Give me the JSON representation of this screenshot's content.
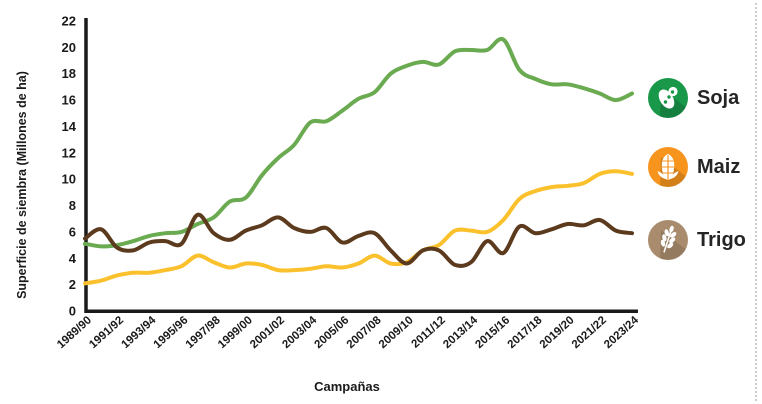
{
  "chart_data": {
    "type": "line",
    "title": "",
    "xlabel": "Campañas",
    "ylabel": "Superficie de siembra (Millones de ha)",
    "ylim": [
      0,
      22
    ],
    "y_tick_step": 2,
    "grid": false,
    "legend_position": "right",
    "x_tick_every": 2,
    "x_tick_labels": [
      "1989/90",
      "1991/92",
      "1993/94",
      "1995/96",
      "1997/98",
      "1999/00",
      "2001/02",
      "2003/04",
      "2005/06",
      "2007/08",
      "2009/10",
      "2011/12",
      "2013/14",
      "2015/16",
      "2017/18",
      "2019/20",
      "2021/22",
      "2023/24"
    ],
    "x": [
      "1989/90",
      "1990/91",
      "1991/92",
      "1992/93",
      "1993/94",
      "1994/95",
      "1995/96",
      "1996/97",
      "1997/98",
      "1998/99",
      "1999/00",
      "2000/01",
      "2001/02",
      "2002/03",
      "2003/04",
      "2004/05",
      "2005/06",
      "2006/07",
      "2007/08",
      "2008/09",
      "2009/10",
      "2010/11",
      "2011/12",
      "2012/13",
      "2013/14",
      "2014/15",
      "2015/16",
      "2016/17",
      "2017/18",
      "2018/19",
      "2019/20",
      "2020/21",
      "2021/22",
      "2022/23",
      "2023/24"
    ],
    "series": [
      {
        "name": "Soja",
        "color": "#6aaa50",
        "values": [
          5.1,
          4.9,
          5.0,
          5.3,
          5.7,
          5.9,
          6.0,
          6.6,
          7.1,
          8.3,
          8.6,
          10.3,
          11.6,
          12.6,
          14.3,
          14.4,
          15.2,
          16.1,
          16.6,
          18.0,
          18.6,
          18.9,
          18.7,
          19.7,
          19.8,
          19.8,
          20.6,
          18.3,
          17.6,
          17.2,
          17.2,
          16.9,
          16.5,
          16.0,
          16.5
        ]
      },
      {
        "name": "Maiz",
        "color": "#fbc12d",
        "values": [
          2.1,
          2.3,
          2.7,
          2.9,
          2.9,
          3.1,
          3.4,
          4.2,
          3.7,
          3.3,
          3.6,
          3.5,
          3.1,
          3.1,
          3.2,
          3.4,
          3.3,
          3.6,
          4.2,
          3.6,
          3.7,
          4.6,
          5.0,
          6.1,
          6.1,
          6.0,
          6.9,
          8.5,
          9.1,
          9.4,
          9.5,
          9.7,
          10.4,
          10.6,
          10.4
        ]
      },
      {
        "name": "Trigo",
        "color": "#5b3a1d",
        "values": [
          5.5,
          6.2,
          4.8,
          4.6,
          5.2,
          5.3,
          5.1,
          7.3,
          5.9,
          5.4,
          6.1,
          6.5,
          7.1,
          6.3,
          6.0,
          6.3,
          5.2,
          5.7,
          5.9,
          4.6,
          3.6,
          4.6,
          4.6,
          3.5,
          3.7,
          5.3,
          4.4,
          6.4,
          5.9,
          6.2,
          6.6,
          6.5,
          6.9,
          6.1,
          5.9
        ]
      }
    ]
  },
  "axes": {
    "y_title": "Superficie de siembra (Millones de ha)",
    "x_title": "Campañas",
    "axis_color": "#1a1a1a",
    "tick_text_color": "#1a1a1a"
  },
  "legend": {
    "items": [
      {
        "label": "Soja",
        "icon": "soybean-icon",
        "circle_color": "#19984a"
      },
      {
        "label": "Maiz",
        "icon": "corn-icon",
        "circle_color": "#f6941e"
      },
      {
        "label": "Trigo",
        "icon": "wheat-icon",
        "circle_color": "#a98c6d"
      }
    ]
  }
}
